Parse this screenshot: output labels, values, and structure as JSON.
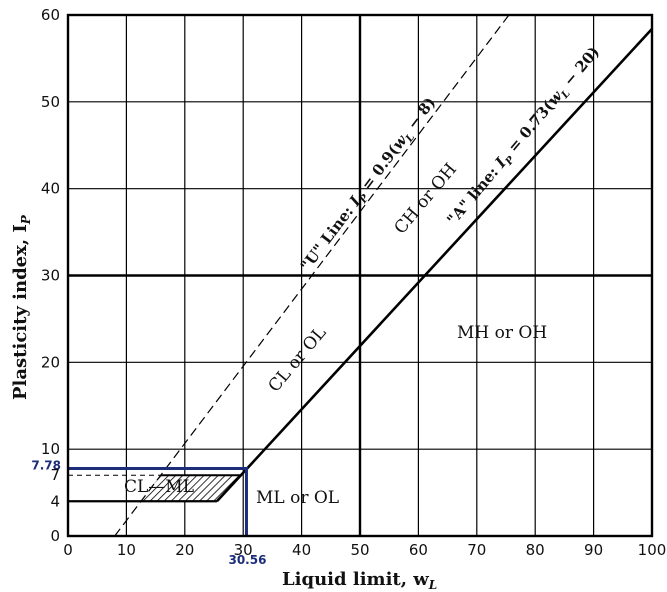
{
  "chart_data": {
    "type": "line",
    "title": "",
    "xlabel": "Liquid limit, w",
    "xlabel_sub": "L",
    "ylabel": "Plasticity index, I",
    "ylabel_sub": "P",
    "xlim": [
      0,
      100
    ],
    "ylim": [
      0,
      60
    ],
    "x_ticks": [
      "0",
      "10",
      "20",
      "30",
      "40",
      "50",
      "60",
      "70",
      "80",
      "90",
      "100"
    ],
    "y_ticks": [
      "0",
      "4",
      "7",
      "10",
      "20",
      "30",
      "40",
      "50",
      "60"
    ],
    "grid": true,
    "series": [
      {
        "name": "\"A\" line: I_P = 0.73(w_L − 20)",
        "style": "solid",
        "x": [
          25.5,
          100
        ],
        "y": [
          4,
          58.4
        ]
      },
      {
        "name": "\"U\" Line: I_P = 0.9(w_L − 8)",
        "style": "dashed",
        "x": [
          8,
          75.5
        ],
        "y": [
          0,
          60
        ]
      }
    ],
    "cl_ml_zone": {
      "x": [
        12,
        25.5,
        29.6,
        16
      ],
      "y": [
        4,
        4,
        7,
        7
      ]
    },
    "marker": {
      "x": 30.56,
      "y": 7.78,
      "x_label": "30.56",
      "y_label": "7.78",
      "color": "#1c2d7a"
    },
    "zone_labels": {
      "cl_ml": "CL—ML",
      "ml_ol": "ML or OL",
      "cl_ol": "CL or OL",
      "ch_oh": "CH or OH",
      "mh_oh": "MH or OH"
    },
    "line_labels": {
      "a_line_prefix": "\"A\" line: ",
      "a_line_I": "I",
      "a_line_sub": "P",
      "a_line_mid": " = 0.73(",
      "a_line_w": "w",
      "a_line_wsub": "L",
      "a_line_end": " − 20)",
      "u_line_prefix": "\"U\" Line: ",
      "u_line_I": "I",
      "u_line_sub": "P",
      "u_line_mid": " = 0.9(",
      "u_line_w": "w",
      "u_line_wsub": "L",
      "u_line_end": " − 8)"
    }
  }
}
